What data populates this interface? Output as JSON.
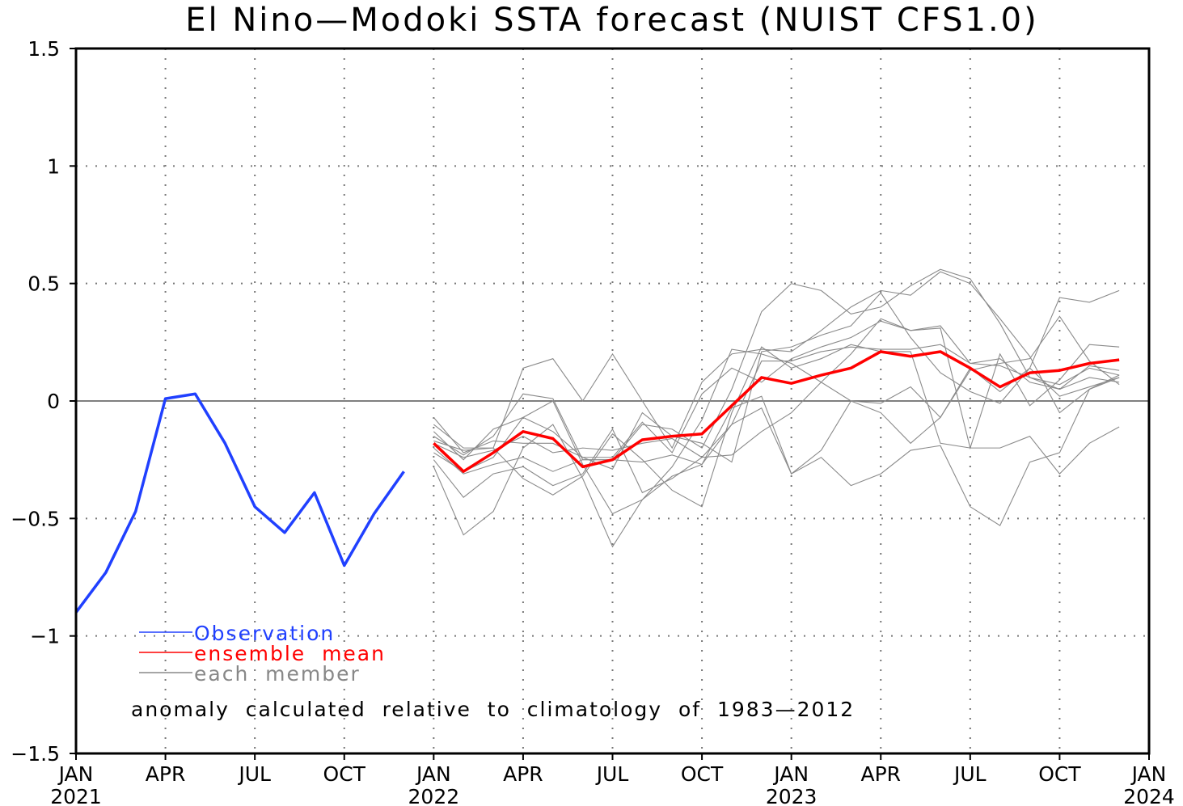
{
  "chart_data": {
    "type": "line",
    "title": "El Nino—Modoki SSTA forecast (NUIST CFS1.0)",
    "xlabel": "",
    "ylabel": "",
    "ylim": [
      -1.5,
      1.5
    ],
    "yticks": [
      1.5,
      1,
      0.5,
      0,
      -0.5,
      -1,
      -1.5
    ],
    "ytick_labels": [
      "1.5",
      "1",
      "0.5",
      "0",
      "−0.5",
      "−1",
      "−1.5"
    ],
    "xlim_months_since_jan2021": [
      0,
      36
    ],
    "xticks": [
      {
        "month": 0,
        "label": "JAN",
        "year": "2021"
      },
      {
        "month": 3,
        "label": "APR",
        "year": ""
      },
      {
        "month": 6,
        "label": "JUL",
        "year": ""
      },
      {
        "month": 9,
        "label": "OCT",
        "year": ""
      },
      {
        "month": 12,
        "label": "JAN",
        "year": "2022"
      },
      {
        "month": 15,
        "label": "APR",
        "year": ""
      },
      {
        "month": 18,
        "label": "JUL",
        "year": ""
      },
      {
        "month": 21,
        "label": "OCT",
        "year": ""
      },
      {
        "month": 24,
        "label": "JAN",
        "year": "2023"
      },
      {
        "month": 27,
        "label": "APR",
        "year": ""
      },
      {
        "month": 30,
        "label": "JUL",
        "year": ""
      },
      {
        "month": 33,
        "label": "OCT",
        "year": ""
      },
      {
        "month": 36,
        "label": "JAN",
        "year": "2024"
      }
    ],
    "grid": true,
    "legend_position": "bottom-left",
    "legend": [
      {
        "label": "Observation",
        "color": "#2040ff"
      },
      {
        "label": "ensemble  mean",
        "color": "#ff0000"
      },
      {
        "label": "each  member",
        "color": "#888888"
      }
    ],
    "annotation": "anomaly  calculated  relative  to  climatology  of  1983—2012",
    "series": [
      {
        "name": "Observation",
        "color": "#2040ff",
        "start_month": 0,
        "values": [
          -0.9,
          -0.73,
          -0.47,
          0.01,
          0.03,
          -0.18,
          -0.45,
          -0.56,
          -0.39,
          -0.7,
          -0.48,
          -0.3
        ]
      },
      {
        "name": "ensemble mean",
        "color": "#ff0000",
        "start_month": 12,
        "values": [
          -0.18,
          -0.3,
          -0.22,
          -0.13,
          -0.16,
          -0.28,
          -0.25,
          -0.165,
          -0.15,
          -0.14,
          -0.02,
          0.1,
          0.075,
          0.11,
          0.14,
          0.21,
          0.19,
          0.21,
          0.14,
          0.06,
          0.12,
          0.13,
          0.16,
          0.175
        ]
      }
    ],
    "members": [
      [
        -0.1,
        -0.2,
        -0.2,
        0.14,
        0.18,
        0.0,
        0.2,
        0.0,
        -0.2,
        0.08,
        0.2,
        0.22,
        0.21,
        0.3,
        0.4,
        0.47,
        0.45,
        0.55,
        0.5,
        0.35,
        0.19,
        -0.05,
        0.05,
        0.1
      ],
      [
        -0.15,
        -0.23,
        -0.15,
        0.03,
        0.01,
        -0.25,
        -0.25,
        -0.1,
        -0.12,
        -0.2,
        0.05,
        0.38,
        0.5,
        0.47,
        0.37,
        0.4,
        0.49,
        0.56,
        0.52,
        0.33,
        0.1,
        0.05,
        0.15,
        0.13
      ],
      [
        -0.28,
        -0.57,
        -0.47,
        -0.2,
        -0.1,
        -0.33,
        -0.62,
        -0.42,
        -0.28,
        -0.08,
        0.22,
        0.2,
        0.16,
        0.08,
        0.0,
        -0.01,
        0.06,
        -0.07,
        0.13,
        0.16,
        0.18,
        0.36,
        0.17,
        0.07
      ],
      [
        -0.22,
        -0.3,
        -0.24,
        -0.07,
        0.0,
        -0.27,
        -0.48,
        -0.42,
        -0.32,
        -0.27,
        -0.1,
        -0.03,
        -0.31,
        -0.21,
        0.0,
        -0.05,
        -0.18,
        -0.07,
        0.14,
        0.04,
        0.14,
        0.44,
        0.42,
        0.47
      ],
      [
        -0.2,
        -0.31,
        -0.27,
        -0.24,
        -0.3,
        -0.25,
        -0.25,
        -0.26,
        -0.23,
        -0.27,
        -0.03,
        0.02,
        -0.31,
        -0.24,
        -0.36,
        -0.31,
        -0.21,
        -0.19,
        -0.45,
        -0.53,
        -0.26,
        -0.22,
        0.05,
        0.11
      ],
      [
        -0.25,
        -0.41,
        -0.31,
        -0.28,
        -0.36,
        -0.31,
        -0.12,
        -0.39,
        -0.33,
        -0.24,
        -0.23,
        -0.13,
        -0.05,
        0.08,
        0.2,
        0.35,
        0.3,
        0.32,
        0.16,
        0.18,
        0.08,
        0.05,
        0.1,
        0.08
      ],
      [
        -0.13,
        -0.25,
        -0.12,
        -0.07,
        -0.13,
        -0.24,
        -0.29,
        -0.05,
        -0.15,
        -0.18,
        -0.26,
        0.21,
        0.23,
        0.28,
        0.32,
        0.46,
        0.27,
        0.12,
        0.04,
        -0.01,
        0.14,
        0.02,
        0.06,
        0.1
      ],
      [
        -0.07,
        -0.22,
        -0.17,
        -0.18,
        -0.18,
        -0.24,
        -0.24,
        -0.09,
        -0.22,
        0.03,
        0.14,
        0.08,
        0.18,
        0.23,
        0.27,
        0.34,
        0.3,
        0.31,
        -0.2,
        0.2,
        -0.02,
        0.09,
        0.24,
        0.23
      ],
      [
        -0.17,
        -0.21,
        -0.2,
        -0.33,
        -0.4,
        -0.32,
        -0.14,
        -0.25,
        -0.38,
        -0.45,
        -0.05,
        0.23,
        0.14,
        0.18,
        0.24,
        0.21,
        0.21,
        -0.18,
        -0.2,
        -0.2,
        -0.15,
        -0.31,
        -0.18,
        -0.11
      ],
      [
        -0.18,
        -0.24,
        -0.21,
        -0.15,
        -0.22,
        -0.2,
        -0.21,
        -0.18,
        -0.16,
        -0.24,
        -0.1,
        0.17,
        0.17,
        0.21,
        0.23,
        0.22,
        0.22,
        0.24,
        0.16,
        0.15,
        0.1,
        0.07,
        0.14,
        0.11
      ]
    ],
    "members_start_month": 12
  }
}
